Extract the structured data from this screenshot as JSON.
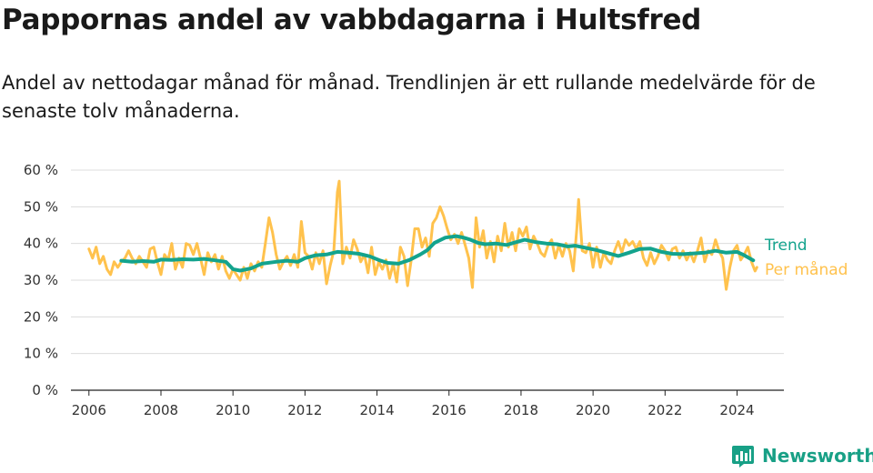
{
  "chart_data": {
    "type": "line",
    "title": "Pappornas andel av vabbdagarna i Hultsfred",
    "subtitle": "Andel av nettodagar månad för månad. Trendlinjen är ett rullande medelvärde för de senaste tolv månaderna.",
    "xlabel": "",
    "ylabel": "",
    "xlim": [
      2005.5,
      2025.3
    ],
    "ylim": [
      0,
      60
    ],
    "x_ticks": [
      2006,
      2008,
      2010,
      2012,
      2014,
      2016,
      2018,
      2020,
      2022,
      2024
    ],
    "x_tick_labels": [
      "2006",
      "2008",
      "2010",
      "2012",
      "2014",
      "2016",
      "2018",
      "2020",
      "2022",
      "2024"
    ],
    "y_ticks": [
      0,
      10,
      20,
      30,
      40,
      50,
      60
    ],
    "y_tick_labels": [
      "0 %",
      "10 %",
      "20 %",
      "30 %",
      "40 %",
      "50 %",
      "60 %"
    ],
    "grid": "horizontal",
    "legend": "right-of-lines",
    "series": [
      {
        "name": "Trend",
        "color": "#13a38d",
        "points": [
          [
            2006.9,
            35.3
          ],
          [
            2007.2,
            35.0
          ],
          [
            2007.5,
            35.2
          ],
          [
            2007.8,
            35.0
          ],
          [
            2008.0,
            35.6
          ],
          [
            2008.3,
            35.5
          ],
          [
            2008.6,
            35.7
          ],
          [
            2008.9,
            35.6
          ],
          [
            2009.2,
            35.8
          ],
          [
            2009.5,
            35.4
          ],
          [
            2009.8,
            35.0
          ],
          [
            2010.0,
            33.0
          ],
          [
            2010.2,
            32.6
          ],
          [
            2010.5,
            33.2
          ],
          [
            2010.8,
            34.5
          ],
          [
            2011.2,
            35.0
          ],
          [
            2011.5,
            35.3
          ],
          [
            2011.8,
            35.0
          ],
          [
            2012.0,
            36.0
          ],
          [
            2012.3,
            36.8
          ],
          [
            2012.6,
            37.0
          ],
          [
            2012.9,
            37.7
          ],
          [
            2013.2,
            37.5
          ],
          [
            2013.5,
            37.2
          ],
          [
            2013.8,
            36.5
          ],
          [
            2014.1,
            35.3
          ],
          [
            2014.3,
            34.7
          ],
          [
            2014.6,
            34.5
          ],
          [
            2014.9,
            35.5
          ],
          [
            2015.2,
            37.0
          ],
          [
            2015.4,
            38.2
          ],
          [
            2015.6,
            40.2
          ],
          [
            2015.9,
            41.6
          ],
          [
            2016.2,
            42.0
          ],
          [
            2016.4,
            41.6
          ],
          [
            2016.6,
            41.0
          ],
          [
            2016.8,
            40.2
          ],
          [
            2017.0,
            39.8
          ],
          [
            2017.3,
            40.0
          ],
          [
            2017.6,
            39.6
          ],
          [
            2017.8,
            40.2
          ],
          [
            2018.1,
            41.0
          ],
          [
            2018.4,
            40.4
          ],
          [
            2018.7,
            40.0
          ],
          [
            2019.0,
            39.8
          ],
          [
            2019.3,
            39.2
          ],
          [
            2019.5,
            39.4
          ],
          [
            2019.8,
            38.8
          ],
          [
            2020.1,
            38.2
          ],
          [
            2020.4,
            37.4
          ],
          [
            2020.7,
            36.6
          ],
          [
            2021.0,
            37.5
          ],
          [
            2021.3,
            38.5
          ],
          [
            2021.6,
            38.6
          ],
          [
            2021.9,
            37.7
          ],
          [
            2022.2,
            37.2
          ],
          [
            2022.5,
            37.1
          ],
          [
            2022.8,
            37.3
          ],
          [
            2023.1,
            37.5
          ],
          [
            2023.4,
            38.0
          ],
          [
            2023.7,
            37.5
          ],
          [
            2024.0,
            37.7
          ],
          [
            2024.2,
            36.8
          ],
          [
            2024.45,
            35.4
          ]
        ]
      },
      {
        "name": "Per månad",
        "color": "#ffc24d",
        "points": [
          [
            2006.0,
            38.5
          ],
          [
            2006.1,
            36.0
          ],
          [
            2006.2,
            39.0
          ],
          [
            2006.3,
            34.5
          ],
          [
            2006.4,
            36.5
          ],
          [
            2006.5,
            33.0
          ],
          [
            2006.6,
            31.5
          ],
          [
            2006.7,
            35.0
          ],
          [
            2006.8,
            33.5
          ],
          [
            2006.9,
            35.0
          ],
          [
            2007.0,
            36.0
          ],
          [
            2007.1,
            38.0
          ],
          [
            2007.2,
            36.0
          ],
          [
            2007.3,
            34.5
          ],
          [
            2007.4,
            36.5
          ],
          [
            2007.5,
            35.0
          ],
          [
            2007.6,
            33.5
          ],
          [
            2007.7,
            38.5
          ],
          [
            2007.8,
            39.0
          ],
          [
            2007.9,
            35.0
          ],
          [
            2008.0,
            31.5
          ],
          [
            2008.1,
            37.0
          ],
          [
            2008.2,
            35.5
          ],
          [
            2008.3,
            40.0
          ],
          [
            2008.4,
            33.0
          ],
          [
            2008.5,
            36.0
          ],
          [
            2008.6,
            33.5
          ],
          [
            2008.7,
            40.0
          ],
          [
            2008.8,
            39.5
          ],
          [
            2008.9,
            37.0
          ],
          [
            2009.0,
            40.0
          ],
          [
            2009.1,
            36.0
          ],
          [
            2009.2,
            31.5
          ],
          [
            2009.3,
            37.5
          ],
          [
            2009.4,
            35.0
          ],
          [
            2009.5,
            37.0
          ],
          [
            2009.6,
            33.0
          ],
          [
            2009.7,
            36.5
          ],
          [
            2009.8,
            32.5
          ],
          [
            2009.9,
            30.5
          ],
          [
            2010.0,
            33.0
          ],
          [
            2010.1,
            31.5
          ],
          [
            2010.2,
            30.0
          ],
          [
            2010.3,
            33.5
          ],
          [
            2010.4,
            30.5
          ],
          [
            2010.5,
            34.5
          ],
          [
            2010.6,
            32.5
          ],
          [
            2010.7,
            35.0
          ],
          [
            2010.8,
            33.5
          ],
          [
            2010.9,
            40.0
          ],
          [
            2011.0,
            47.0
          ],
          [
            2011.1,
            43.0
          ],
          [
            2011.2,
            37.0
          ],
          [
            2011.3,
            33.0
          ],
          [
            2011.4,
            35.0
          ],
          [
            2011.5,
            36.5
          ],
          [
            2011.6,
            34.0
          ],
          [
            2011.7,
            37.0
          ],
          [
            2011.8,
            33.5
          ],
          [
            2011.9,
            46.0
          ],
          [
            2012.0,
            37.5
          ],
          [
            2012.1,
            36.5
          ],
          [
            2012.2,
            33.0
          ],
          [
            2012.3,
            37.5
          ],
          [
            2012.4,
            34.5
          ],
          [
            2012.5,
            38.0
          ],
          [
            2012.6,
            29.0
          ],
          [
            2012.7,
            34.0
          ],
          [
            2012.8,
            38.0
          ],
          [
            2012.9,
            54.0
          ],
          [
            2012.95,
            57.0
          ],
          [
            2013.05,
            34.5
          ],
          [
            2013.15,
            39.0
          ],
          [
            2013.25,
            36.0
          ],
          [
            2013.35,
            41.0
          ],
          [
            2013.45,
            38.5
          ],
          [
            2013.55,
            35.0
          ],
          [
            2013.65,
            37.0
          ],
          [
            2013.75,
            32.0
          ],
          [
            2013.85,
            39.0
          ],
          [
            2013.95,
            31.5
          ],
          [
            2014.05,
            35.0
          ],
          [
            2014.15,
            33.0
          ],
          [
            2014.25,
            35.5
          ],
          [
            2014.35,
            30.5
          ],
          [
            2014.45,
            34.5
          ],
          [
            2014.55,
            29.5
          ],
          [
            2014.65,
            39.0
          ],
          [
            2014.75,
            36.5
          ],
          [
            2014.85,
            28.5
          ],
          [
            2014.95,
            35.5
          ],
          [
            2015.05,
            44.0
          ],
          [
            2015.15,
            44.0
          ],
          [
            2015.25,
            39.0
          ],
          [
            2015.35,
            41.5
          ],
          [
            2015.45,
            36.5
          ],
          [
            2015.55,
            45.5
          ],
          [
            2015.65,
            47.0
          ],
          [
            2015.75,
            50.0
          ],
          [
            2015.85,
            47.5
          ],
          [
            2015.95,
            44.0
          ],
          [
            2016.05,
            41.0
          ],
          [
            2016.15,
            42.5
          ],
          [
            2016.25,
            40.0
          ],
          [
            2016.35,
            43.0
          ],
          [
            2016.45,
            39.5
          ],
          [
            2016.55,
            36.0
          ],
          [
            2016.65,
            28.0
          ],
          [
            2016.75,
            47.0
          ],
          [
            2016.85,
            39.0
          ],
          [
            2016.95,
            43.5
          ],
          [
            2017.05,
            36.0
          ],
          [
            2017.15,
            40.5
          ],
          [
            2017.25,
            35.0
          ],
          [
            2017.35,
            42.0
          ],
          [
            2017.45,
            38.0
          ],
          [
            2017.55,
            45.5
          ],
          [
            2017.65,
            39.0
          ],
          [
            2017.75,
            43.0
          ],
          [
            2017.85,
            38.0
          ],
          [
            2017.95,
            44.0
          ],
          [
            2018.05,
            42.0
          ],
          [
            2018.15,
            44.5
          ],
          [
            2018.25,
            38.5
          ],
          [
            2018.35,
            42.0
          ],
          [
            2018.45,
            40.0
          ],
          [
            2018.55,
            37.5
          ],
          [
            2018.65,
            36.5
          ],
          [
            2018.75,
            39.5
          ],
          [
            2018.85,
            41.0
          ],
          [
            2018.95,
            36.0
          ],
          [
            2019.05,
            39.5
          ],
          [
            2019.15,
            36.5
          ],
          [
            2019.25,
            40.0
          ],
          [
            2019.35,
            38.0
          ],
          [
            2019.45,
            32.5
          ],
          [
            2019.55,
            44.0
          ],
          [
            2019.6,
            52.0
          ],
          [
            2019.7,
            38.0
          ],
          [
            2019.8,
            37.5
          ],
          [
            2019.9,
            40.0
          ],
          [
            2020.0,
            33.5
          ],
          [
            2020.1,
            39.0
          ],
          [
            2020.2,
            33.5
          ],
          [
            2020.3,
            37.5
          ],
          [
            2020.4,
            35.5
          ],
          [
            2020.5,
            34.5
          ],
          [
            2020.6,
            38.0
          ],
          [
            2020.7,
            40.5
          ],
          [
            2020.8,
            37.5
          ],
          [
            2020.9,
            41.0
          ],
          [
            2021.0,
            39.5
          ],
          [
            2021.1,
            40.5
          ],
          [
            2021.2,
            38.5
          ],
          [
            2021.3,
            40.5
          ],
          [
            2021.4,
            36.0
          ],
          [
            2021.5,
            34.0
          ],
          [
            2021.6,
            37.5
          ],
          [
            2021.7,
            34.5
          ],
          [
            2021.8,
            36.5
          ],
          [
            2021.9,
            39.5
          ],
          [
            2022.0,
            38.0
          ],
          [
            2022.1,
            35.5
          ],
          [
            2022.2,
            38.5
          ],
          [
            2022.3,
            39.0
          ],
          [
            2022.4,
            36.0
          ],
          [
            2022.5,
            38.0
          ],
          [
            2022.6,
            35.5
          ],
          [
            2022.7,
            37.5
          ],
          [
            2022.8,
            35.0
          ],
          [
            2022.9,
            38.0
          ],
          [
            2023.0,
            41.5
          ],
          [
            2023.1,
            35.0
          ],
          [
            2023.2,
            38.0
          ],
          [
            2023.3,
            37.0
          ],
          [
            2023.4,
            41.0
          ],
          [
            2023.5,
            38.0
          ],
          [
            2023.6,
            36.0
          ],
          [
            2023.7,
            27.5
          ],
          [
            2023.8,
            33.5
          ],
          [
            2023.9,
            38.0
          ],
          [
            2024.0,
            39.5
          ],
          [
            2024.1,
            35.5
          ],
          [
            2024.2,
            37.0
          ],
          [
            2024.3,
            39.0
          ],
          [
            2024.4,
            35.0
          ],
          [
            2024.5,
            32.5
          ],
          [
            2024.55,
            33.5
          ]
        ]
      }
    ]
  },
  "branding": {
    "name": "Newsworthy",
    "logo_icon": "bar-chart-speech-bubble-icon",
    "color": "#18a086"
  }
}
